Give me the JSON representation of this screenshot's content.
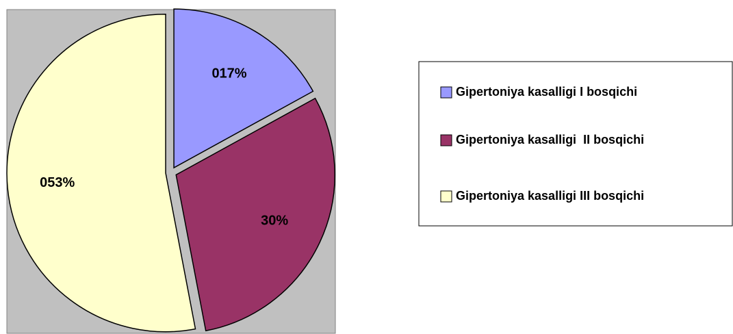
{
  "chart_data": {
    "type": "pie",
    "categories": [
      "Gipertoniya kasalligi I bosqichi",
      "Gipertoniya kasalligi  II bosqichi",
      "Gipertoniya kasalligi III bosqichi"
    ],
    "values": [
      17,
      30,
      53
    ],
    "value_labels": [
      "017%",
      "30%",
      "053%"
    ],
    "colors": [
      "#9999ff",
      "#993366",
      "#ffffcc"
    ],
    "legend": "right"
  }
}
